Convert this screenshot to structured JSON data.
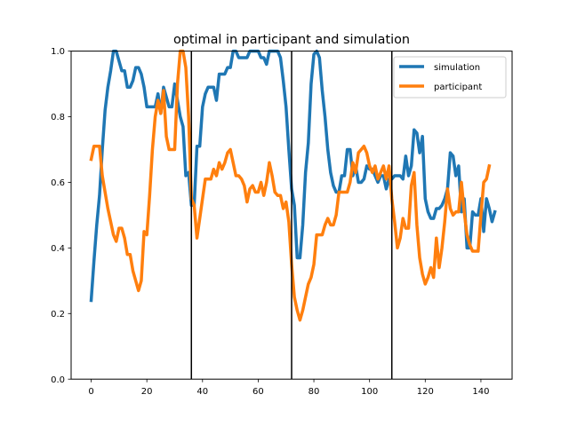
{
  "chart_data": {
    "type": "line",
    "title": "optimal in participant and simulation",
    "xlabel": "",
    "ylabel": "",
    "xlim": [
      -7.2,
      151.2
    ],
    "ylim": [
      0.0,
      1.0
    ],
    "xticks": [
      0,
      20,
      40,
      60,
      80,
      100,
      120,
      140
    ],
    "yticks": [
      0.0,
      0.2,
      0.4,
      0.6,
      0.8,
      1.0
    ],
    "xtick_labels": [
      "0",
      "20",
      "40",
      "60",
      "80",
      "100",
      "120",
      "140"
    ],
    "ytick_labels": [
      "0.0",
      "0.2",
      "0.4",
      "0.6",
      "0.8",
      "1.0"
    ],
    "grid": false,
    "legend_position": "top-right",
    "vlines": [
      36,
      72,
      108
    ],
    "series": [
      {
        "name": "simulation",
        "color": "#1f77b4",
        "values": [
          0.24,
          0.36,
          0.47,
          0.56,
          0.7,
          0.82,
          0.89,
          0.94,
          1.0,
          1.0,
          0.97,
          0.94,
          0.94,
          0.89,
          0.89,
          0.91,
          0.95,
          0.95,
          0.93,
          0.89,
          0.83,
          0.83,
          0.83,
          0.83,
          0.87,
          0.81,
          0.89,
          0.86,
          0.83,
          0.83,
          0.9,
          0.85,
          0.8,
          0.77,
          0.62,
          0.63,
          0.53,
          0.53,
          0.71,
          0.71,
          0.83,
          0.87,
          0.89,
          0.89,
          0.89,
          0.85,
          0.93,
          0.93,
          0.93,
          0.95,
          0.95,
          1.0,
          1.0,
          0.98,
          0.98,
          0.98,
          0.98,
          1.0,
          1.0,
          1.0,
          1.0,
          0.98,
          0.98,
          0.96,
          1.0,
          1.0,
          1.0,
          1.0,
          0.98,
          0.91,
          0.83,
          0.7,
          0.58,
          0.53,
          0.37,
          0.37,
          0.47,
          0.63,
          0.72,
          0.9,
          0.99,
          1.0,
          0.98,
          0.88,
          0.8,
          0.7,
          0.63,
          0.59,
          0.57,
          0.57,
          0.62,
          0.62,
          0.7,
          0.7,
          0.62,
          0.65,
          0.6,
          0.6,
          0.61,
          0.65,
          0.64,
          0.64,
          0.62,
          0.6,
          0.62,
          0.62,
          0.58,
          0.61,
          0.61,
          0.62,
          0.62,
          0.62,
          0.61,
          0.68,
          0.62,
          0.65,
          0.76,
          0.75,
          0.69,
          0.74,
          0.55,
          0.51,
          0.49,
          0.49,
          0.52,
          0.52,
          0.53,
          0.55,
          0.58,
          0.69,
          0.68,
          0.62,
          0.65,
          0.51,
          0.55,
          0.4,
          0.4,
          0.51,
          0.5,
          0.5,
          0.55,
          0.45,
          0.55,
          0.52,
          0.48,
          0.51
        ]
      },
      {
        "name": "participant",
        "color": "#ff7f0e",
        "values": [
          0.67,
          0.71,
          0.71,
          0.71,
          0.62,
          0.57,
          0.52,
          0.48,
          0.44,
          0.42,
          0.46,
          0.46,
          0.43,
          0.38,
          0.38,
          0.33,
          0.3,
          0.27,
          0.3,
          0.45,
          0.44,
          0.56,
          0.7,
          0.8,
          0.85,
          0.81,
          0.88,
          0.74,
          0.7,
          0.7,
          0.7,
          0.9,
          1.0,
          1.0,
          0.95,
          0.8,
          0.55,
          0.53,
          0.43,
          0.49,
          0.55,
          0.61,
          0.61,
          0.61,
          0.64,
          0.62,
          0.66,
          0.64,
          0.66,
          0.69,
          0.7,
          0.66,
          0.62,
          0.62,
          0.61,
          0.59,
          0.54,
          0.58,
          0.59,
          0.57,
          0.57,
          0.6,
          0.56,
          0.6,
          0.66,
          0.62,
          0.57,
          0.56,
          0.56,
          0.52,
          0.54,
          0.48,
          0.35,
          0.25,
          0.21,
          0.18,
          0.21,
          0.25,
          0.29,
          0.31,
          0.35,
          0.44,
          0.44,
          0.44,
          0.47,
          0.49,
          0.47,
          0.47,
          0.5,
          0.57,
          0.57,
          0.57,
          0.57,
          0.6,
          0.66,
          0.63,
          0.69,
          0.7,
          0.71,
          0.69,
          0.65,
          0.63,
          0.65,
          0.61,
          0.63,
          0.65,
          0.61,
          0.65,
          0.55,
          0.48,
          0.4,
          0.43,
          0.49,
          0.46,
          0.46,
          0.59,
          0.63,
          0.47,
          0.37,
          0.32,
          0.29,
          0.31,
          0.34,
          0.31,
          0.43,
          0.34,
          0.4,
          0.48,
          0.58,
          0.52,
          0.5,
          0.51,
          0.51,
          0.6,
          0.51,
          0.44,
          0.41,
          0.39,
          0.39,
          0.39,
          0.5,
          0.6,
          0.61,
          0.65
        ]
      }
    ]
  }
}
